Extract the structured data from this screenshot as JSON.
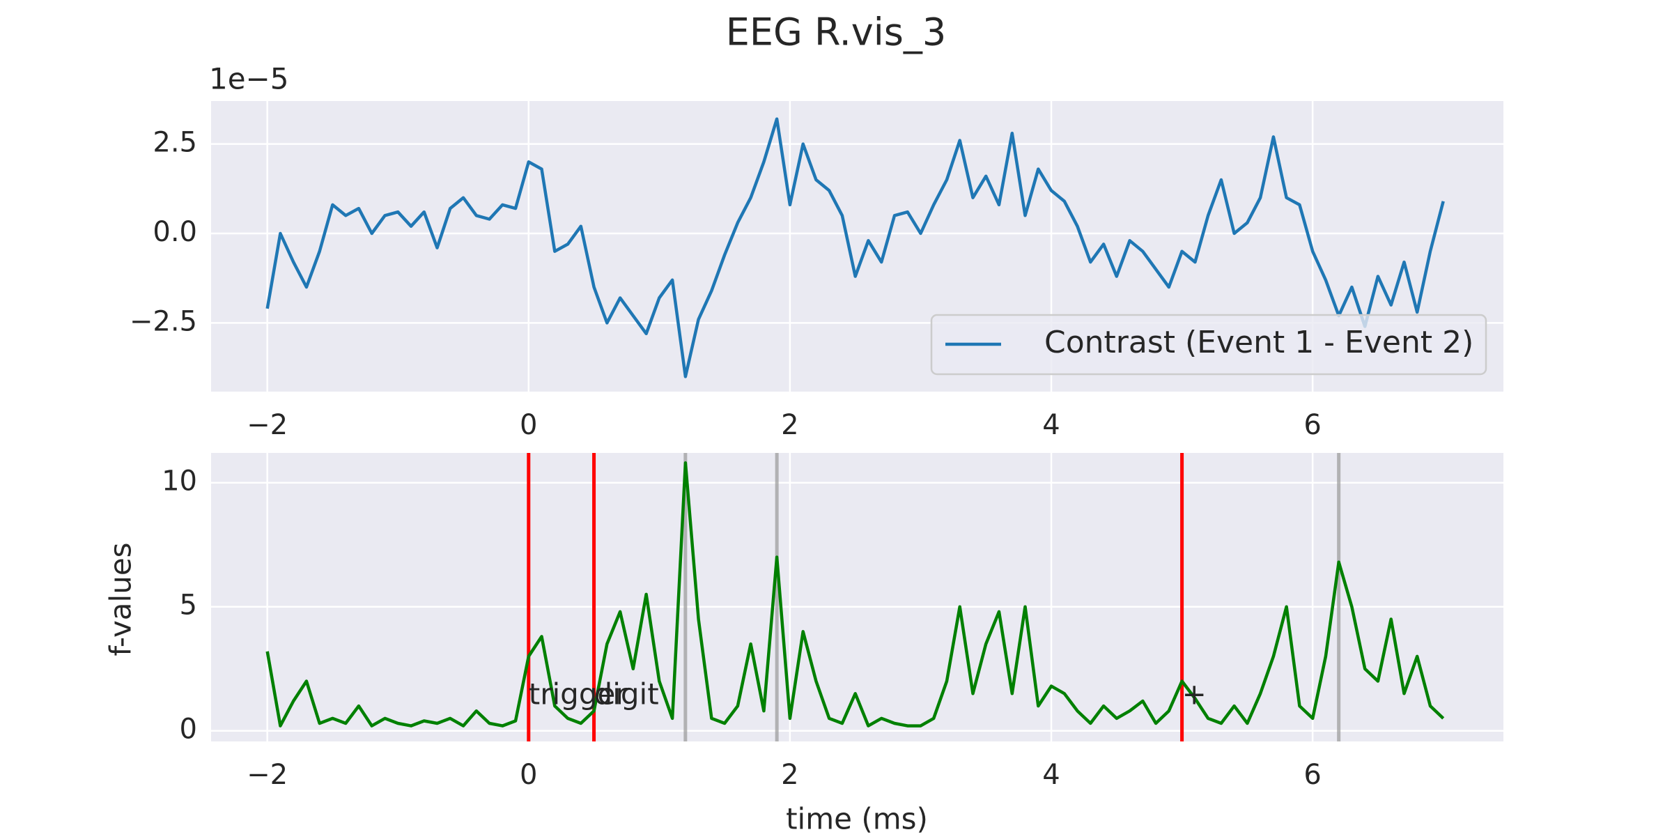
{
  "chart_data": [
    {
      "type": "line",
      "title": "EEG R.vis_3",
      "offset_label": "1e−5",
      "grid": true,
      "legend": "lower right",
      "x": [
        -2,
        -1.9,
        -1.8,
        -1.7,
        -1.6,
        -1.5,
        -1.4,
        -1.3,
        -1.2,
        -1.1,
        -1,
        -0.9,
        -0.8,
        -0.7,
        -0.6,
        -0.5,
        -0.4,
        -0.3,
        -0.2,
        -0.1,
        0,
        0.1,
        0.2,
        0.3,
        0.4,
        0.5,
        0.6,
        0.7,
        0.8,
        0.9,
        1,
        1.1,
        1.2,
        1.3,
        1.4,
        1.5,
        1.6,
        1.7,
        1.8,
        1.9,
        2,
        2.1,
        2.2,
        2.3,
        2.4,
        2.5,
        2.6,
        2.7,
        2.8,
        2.9,
        3,
        3.1,
        3.2,
        3.3,
        3.4,
        3.5,
        3.6,
        3.7,
        3.8,
        3.9,
        4,
        4.1,
        4.2,
        4.3,
        4.4,
        4.5,
        4.6,
        4.7,
        4.8,
        4.9,
        5,
        5.1,
        5.2,
        5.3,
        5.4,
        5.5,
        5.6,
        5.7,
        5.8,
        5.9,
        6,
        6.1,
        6.2,
        6.3,
        6.4,
        6.5,
        6.6,
        6.7,
        6.8,
        6.9,
        7
      ],
      "series": [
        {
          "name": "Contrast (Event 1 - Event 2)",
          "color": "#1f77b4",
          "values": [
            -2.1,
            0,
            -0.8,
            -1.5,
            -0.5,
            0.8,
            0.5,
            0.7,
            0,
            0.5,
            0.6,
            0.2,
            0.6,
            -0.4,
            0.7,
            1,
            0.5,
            0.4,
            0.8,
            0.7,
            2,
            1.8,
            -0.5,
            -0.3,
            0.2,
            -1.5,
            -2.5,
            -1.8,
            -2.3,
            -2.8,
            -1.8,
            -1.3,
            -4,
            -2.4,
            -1.6,
            -0.6,
            0.3,
            1,
            2,
            3.2,
            0.8,
            2.5,
            1.5,
            1.2,
            0.5,
            -1.2,
            -0.2,
            -0.8,
            0.5,
            0.6,
            0,
            0.8,
            1.5,
            2.6,
            1,
            1.6,
            0.8,
            2.8,
            0.5,
            1.8,
            1.2,
            0.9,
            0.2,
            -0.8,
            -0.3,
            -1.2,
            -0.2,
            -0.5,
            -1,
            -1.5,
            -0.5,
            -0.8,
            0.5,
            1.5,
            0,
            0.3,
            1,
            2.7,
            1,
            0.8,
            -0.5,
            -1.3,
            -2.3,
            -1.5,
            -2.6,
            -1.2,
            -2,
            -0.8,
            -2.2,
            -0.5,
            0.9
          ]
        }
      ],
      "xlim": [
        -2.43,
        7.46
      ],
      "xticks": [
        {
          "value": -2,
          "label": "−2"
        },
        0,
        2,
        4,
        6
      ],
      "ylim": [
        -4.42,
        3.7
      ],
      "yticks": [
        {
          "value": -2.5,
          "label": "−2.5"
        },
        {
          "value": 0,
          "label": "0.0"
        },
        2.5
      ]
    },
    {
      "type": "line",
      "x_label": "time (ms)",
      "y_label": "f-values",
      "grid": true,
      "x": [
        -2,
        -1.9,
        -1.8,
        -1.7,
        -1.6,
        -1.5,
        -1.4,
        -1.3,
        -1.2,
        -1.1,
        -1,
        -0.9,
        -0.8,
        -0.7,
        -0.6,
        -0.5,
        -0.4,
        -0.3,
        -0.2,
        -0.1,
        0,
        0.1,
        0.2,
        0.3,
        0.4,
        0.5,
        0.6,
        0.7,
        0.8,
        0.9,
        1,
        1.1,
        1.2,
        1.3,
        1.4,
        1.5,
        1.6,
        1.7,
        1.8,
        1.9,
        2,
        2.1,
        2.2,
        2.3,
        2.4,
        2.5,
        2.6,
        2.7,
        2.8,
        2.9,
        3,
        3.1,
        3.2,
        3.3,
        3.4,
        3.5,
        3.6,
        3.7,
        3.8,
        3.9,
        4,
        4.1,
        4.2,
        4.3,
        4.4,
        4.5,
        4.6,
        4.7,
        4.8,
        4.9,
        5,
        5.1,
        5.2,
        5.3,
        5.4,
        5.5,
        5.6,
        5.7,
        5.8,
        5.9,
        6,
        6.1,
        6.2,
        6.3,
        6.4,
        6.5,
        6.6,
        6.7,
        6.8,
        6.9,
        7
      ],
      "series": [
        {
          "color": "#008000",
          "values": [
            3.2,
            0.2,
            1.2,
            2,
            0.3,
            0.5,
            0.3,
            1,
            0.2,
            0.5,
            0.3,
            0.2,
            0.4,
            0.3,
            0.5,
            0.2,
            0.8,
            0.3,
            0.2,
            0.4,
            3,
            3.8,
            1,
            0.5,
            0.3,
            0.8,
            3.5,
            4.8,
            2.5,
            5.5,
            2,
            0.5,
            10.8,
            4.5,
            0.5,
            0.3,
            1,
            3.5,
            0.8,
            7,
            0.5,
            4,
            2,
            0.5,
            0.3,
            1.5,
            0.2,
            0.5,
            0.3,
            0.2,
            0.2,
            0.5,
            2,
            5,
            1.5,
            3.5,
            4.8,
            1.5,
            5,
            1,
            1.8,
            1.5,
            0.8,
            0.3,
            1,
            0.5,
            0.8,
            1.2,
            0.3,
            0.8,
            2,
            1.3,
            0.5,
            0.3,
            1,
            0.3,
            1.5,
            3,
            5,
            1,
            0.5,
            3,
            6.8,
            5,
            2.5,
            2,
            4.5,
            1.5,
            3,
            1,
            0.5
          ]
        }
      ],
      "events": [
        {
          "x": 0,
          "color": "#ff0000",
          "label": "trigger"
        },
        {
          "x": 0.5,
          "color": "#ff0000",
          "label": "digit"
        },
        {
          "x": 5,
          "color": "#ff0000",
          "label": "+"
        },
        {
          "x": 1.2,
          "color": "#999999"
        },
        {
          "x": 1.9,
          "color": "#999999"
        },
        {
          "x": 6.2,
          "color": "#999999"
        }
      ],
      "xlim": [
        -2.43,
        7.46
      ],
      "xticks": [
        {
          "value": -2,
          "label": "−2"
        },
        0,
        2,
        4,
        6
      ],
      "ylim": [
        -0.43,
        11.2
      ],
      "yticks": [
        0,
        5,
        10
      ]
    }
  ]
}
